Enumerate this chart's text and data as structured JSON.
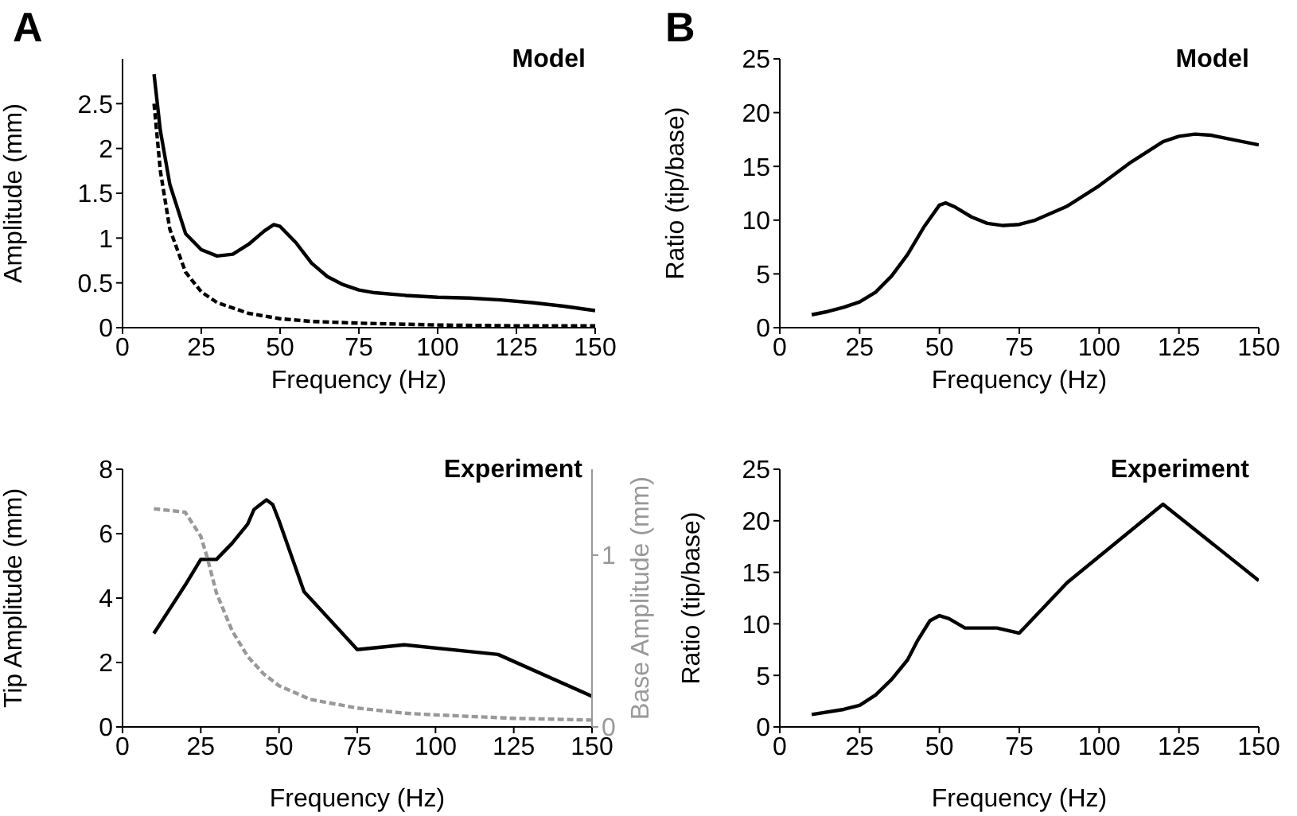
{
  "chart_data": [
    {
      "type": "line",
      "title": "Model",
      "annotations": [
        "A"
      ],
      "xlabel": "Frequency (Hz)",
      "ylabel": "Amplitude (mm)",
      "xlim": [
        0,
        150
      ],
      "xticks": [
        0,
        25,
        50,
        75,
        100,
        125,
        150
      ],
      "ylim": [
        0,
        3
      ],
      "yticks": [
        0,
        0.5,
        1,
        1.5,
        2,
        2.5
      ],
      "grid": false,
      "legend": false,
      "marker": "none",
      "series": [
        {
          "color": "#000000",
          "line_style": "solid",
          "x": [
            10,
            12,
            15,
            20,
            25,
            30,
            35,
            40,
            45,
            48,
            50,
            55,
            60,
            65,
            70,
            75,
            80,
            90,
            100,
            110,
            120,
            130,
            140,
            150
          ],
          "values": [
            2.83,
            2.2,
            1.6,
            1.05,
            0.87,
            0.8,
            0.82,
            0.93,
            1.08,
            1.15,
            1.13,
            0.95,
            0.72,
            0.57,
            0.48,
            0.42,
            0.39,
            0.36,
            0.34,
            0.33,
            0.31,
            0.28,
            0.24,
            0.19
          ]
        },
        {
          "color": "#000000",
          "line_style": "dashed",
          "x": [
            10,
            12,
            15,
            20,
            25,
            30,
            40,
            50,
            60,
            75,
            100,
            125,
            150
          ],
          "values": [
            2.5,
            1.75,
            1.1,
            0.62,
            0.4,
            0.28,
            0.16,
            0.1,
            0.07,
            0.05,
            0.03,
            0.02,
            0.02
          ]
        }
      ]
    },
    {
      "type": "line",
      "title": "Model",
      "annotations": [
        "B"
      ],
      "xlabel": "Frequency (Hz)",
      "ylabel": "Ratio (tip/base)",
      "xlim": [
        0,
        150
      ],
      "xticks": [
        0,
        25,
        50,
        75,
        100,
        125,
        150
      ],
      "ylim": [
        0,
        25
      ],
      "yticks": [
        0,
        5,
        10,
        15,
        20,
        25
      ],
      "grid": false,
      "legend": false,
      "marker": "none",
      "series": [
        {
          "color": "#000000",
          "line_style": "solid",
          "x": [
            10,
            15,
            20,
            25,
            30,
            35,
            40,
            45,
            50,
            52,
            55,
            60,
            65,
            70,
            75,
            80,
            90,
            100,
            110,
            120,
            125,
            130,
            135,
            140,
            150
          ],
          "values": [
            1.2,
            1.5,
            1.9,
            2.4,
            3.3,
            4.8,
            6.8,
            9.3,
            11.4,
            11.6,
            11.2,
            10.3,
            9.7,
            9.5,
            9.6,
            10.0,
            11.3,
            13.2,
            15.4,
            17.3,
            17.8,
            18.0,
            17.9,
            17.6,
            17.0
          ]
        }
      ]
    },
    {
      "type": "line",
      "title": "Experiment",
      "xlabel": "Frequency (Hz)",
      "ylabel": "Tip Amplitude (mm)",
      "y2label": "Base Amplitude (mm)",
      "xlim": [
        0,
        150
      ],
      "xticks": [
        0,
        25,
        50,
        75,
        100,
        125,
        150
      ],
      "ylim": [
        0,
        8
      ],
      "yticks": [
        0,
        2,
        4,
        6,
        8
      ],
      "y2lim": [
        0,
        1.5
      ],
      "y2ticks": [
        0,
        1
      ],
      "grid": false,
      "legend": false,
      "marker": "none",
      "series": [
        {
          "color": "#000000",
          "line_style": "solid",
          "x": [
            10,
            20,
            25,
            30,
            35,
            40,
            42,
            44,
            46,
            48,
            50,
            58,
            75,
            90,
            120,
            150
          ],
          "values": [
            2.9,
            4.4,
            5.2,
            5.2,
            5.7,
            6.3,
            6.75,
            6.9,
            7.05,
            6.9,
            6.4,
            4.2,
            2.4,
            2.55,
            2.25,
            0.95
          ]
        },
        {
          "color": "#999999",
          "line_style": "dashed",
          "axis": "y2",
          "x": [
            10,
            20,
            25,
            27,
            30,
            35,
            40,
            45,
            50,
            60,
            75,
            90,
            100,
            125,
            150
          ],
          "values": [
            1.27,
            1.25,
            1.11,
            0.99,
            0.78,
            0.56,
            0.41,
            0.31,
            0.24,
            0.16,
            0.11,
            0.08,
            0.07,
            0.05,
            0.04
          ]
        }
      ]
    },
    {
      "type": "line",
      "title": "Experiment",
      "xlabel": "Frequency (Hz)",
      "ylabel": "Ratio (tip/base)",
      "xlim": [
        0,
        150
      ],
      "xticks": [
        0,
        25,
        50,
        75,
        100,
        125,
        150
      ],
      "ylim": [
        0,
        25
      ],
      "yticks": [
        0,
        5,
        10,
        15,
        20,
        25
      ],
      "grid": false,
      "legend": false,
      "marker": "none",
      "series": [
        {
          "color": "#000000",
          "line_style": "solid",
          "x": [
            10,
            20,
            25,
            30,
            35,
            40,
            43,
            47,
            50,
            53,
            58,
            68,
            75,
            90,
            120,
            150
          ],
          "values": [
            1.2,
            1.7,
            2.1,
            3.1,
            4.6,
            6.5,
            8.3,
            10.3,
            10.8,
            10.5,
            9.6,
            9.6,
            9.1,
            14,
            21.6,
            14.2
          ]
        }
      ]
    }
  ]
}
